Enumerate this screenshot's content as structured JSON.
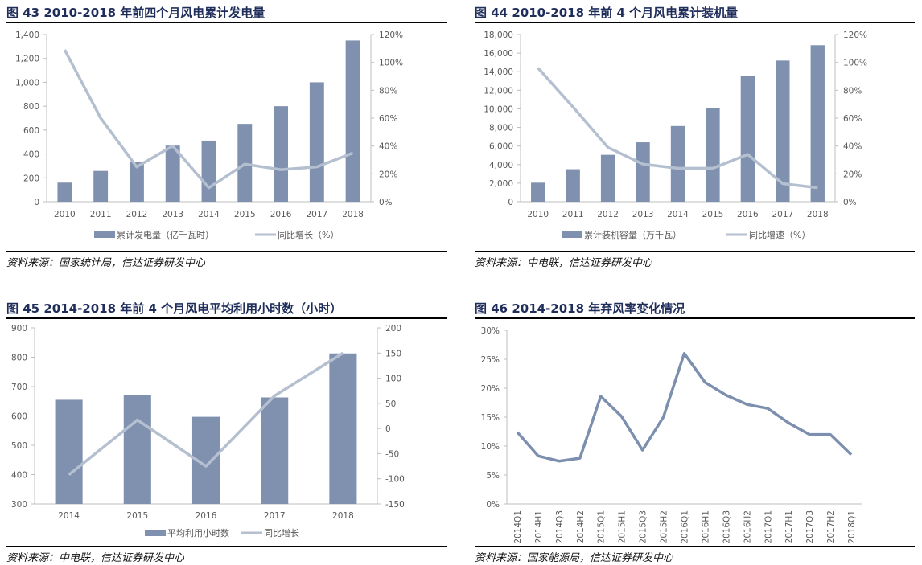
{
  "colors": {
    "bar": "#8091b0",
    "line": "#b4bfcf",
    "line46": "#7d8fae",
    "title": "#1f2d5a"
  },
  "chart_data": [
    {
      "type": "bar+line",
      "title": "图 43 2010-2018 年前四个月风电累计发电量",
      "source": "资料来源：国家统计局，信达证券研发中心",
      "categories": [
        "2010",
        "2011",
        "2012",
        "2013",
        "2014",
        "2015",
        "2016",
        "2017",
        "2018"
      ],
      "series": [
        {
          "name": "累计发电量（亿千瓦时）",
          "type": "bar",
          "axis": "left",
          "values": [
            160,
            258,
            335,
            470,
            512,
            652,
            800,
            1000,
            1350
          ]
        },
        {
          "name": "同比增长（%）",
          "type": "line",
          "axis": "right",
          "values": [
            109,
            60,
            25,
            40,
            10,
            27,
            23,
            25,
            35
          ]
        }
      ],
      "ylim": [
        0,
        1400
      ],
      "yticks": [
        "0",
        "200",
        "400",
        "600",
        "800",
        "1,000",
        "1,200",
        "1,400"
      ],
      "y2lim": [
        0,
        120
      ],
      "y2ticks": [
        "0%",
        "20%",
        "40%",
        "60%",
        "80%",
        "100%",
        "120%"
      ]
    },
    {
      "type": "bar+line",
      "title": "图 44 2010-2018 年前 4 个月风电累计装机量",
      "source": "资料来源：中电联，信达证券研发中心",
      "categories": [
        "2010",
        "2011",
        "2012",
        "2013",
        "2014",
        "2015",
        "2016",
        "2017",
        "2018"
      ],
      "series": [
        {
          "name": "累计装机容量（万千瓦）",
          "type": "bar",
          "axis": "left",
          "values": [
            2050,
            3500,
            5050,
            6400,
            8150,
            10100,
            13500,
            15200,
            16850
          ]
        },
        {
          "name": "同比增速（%）",
          "type": "line",
          "axis": "right",
          "values": [
            96,
            68,
            39,
            27,
            24,
            24,
            34,
            13,
            10
          ]
        }
      ],
      "ylim": [
        0,
        18000
      ],
      "yticks": [
        "0",
        "2,000",
        "4,000",
        "6,000",
        "8,000",
        "10,000",
        "12,000",
        "14,000",
        "16,000",
        "18,000"
      ],
      "y2lim": [
        0,
        120
      ],
      "y2ticks": [
        "0%",
        "20%",
        "40%",
        "60%",
        "80%",
        "100%",
        "120%"
      ]
    },
    {
      "type": "bar+line",
      "title": "图 45 2014-2018 年前 4 个月风电平均利用小时数（小时）",
      "source": "资料来源：中电联，信达证券研发中心",
      "categories": [
        "2014",
        "2015",
        "2016",
        "2017",
        "2018"
      ],
      "series": [
        {
          "name": "平均利用小时数",
          "type": "bar",
          "axis": "left",
          "values": [
            655,
            672,
            597,
            663,
            813
          ]
        },
        {
          "name": "同比增长",
          "type": "line",
          "axis": "right",
          "values": [
            -92,
            17,
            -75,
            65,
            150
          ]
        }
      ],
      "ylim": [
        300,
        900
      ],
      "yticks": [
        "300",
        "400",
        "500",
        "600",
        "700",
        "800",
        "900"
      ],
      "y2lim": [
        -150,
        200
      ],
      "y2ticks": [
        "-150",
        "-100",
        "-50",
        "0",
        "50",
        "100",
        "150",
        "200"
      ]
    },
    {
      "type": "line",
      "title": "图 46 2014-2018 年弃风率变化情况",
      "source": "资料来源：国家能源局，信达证券研发中心",
      "categories": [
        "2014Q1",
        "2014H1",
        "2014Q3",
        "2014H2",
        "2015Q1",
        "2015H1",
        "2015Q3",
        "2015H2",
        "2016Q1",
        "2016H1",
        "2016Q3",
        "2016H2",
        "2017Q1",
        "2017H1",
        "2017Q3",
        "2017H2",
        "2018Q1"
      ],
      "series": [
        {
          "name": "弃风率",
          "type": "line",
          "axis": "left",
          "values": [
            12.4,
            8.3,
            7.4,
            7.9,
            18.6,
            15.1,
            9.3,
            15,
            26,
            21,
            18.8,
            17.2,
            16.5,
            14,
            12,
            12,
            8.5
          ]
        }
      ],
      "ylim": [
        0,
        30
      ],
      "yticks": [
        "0%",
        "5%",
        "10%",
        "15%",
        "20%",
        "25%",
        "30%"
      ]
    }
  ]
}
